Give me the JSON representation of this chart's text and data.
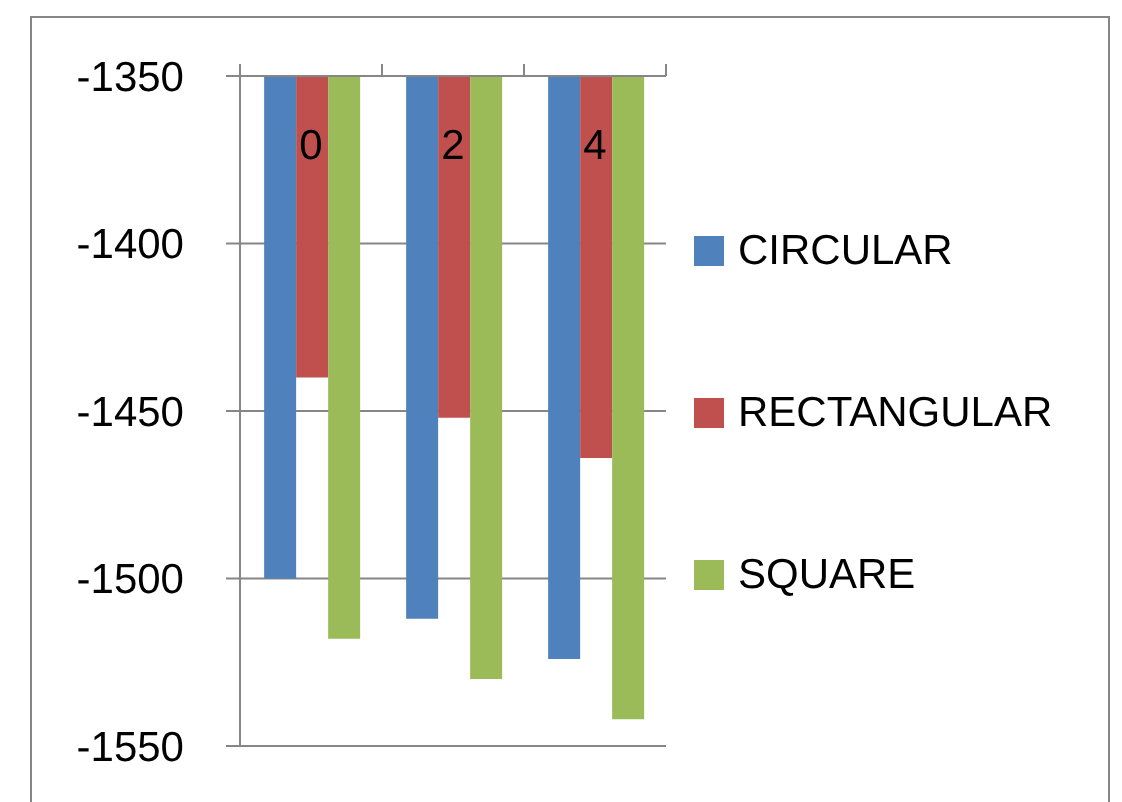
{
  "chart_data": {
    "type": "bar",
    "categories": [
      "0",
      "2",
      "4"
    ],
    "series": [
      {
        "name": "CIRCULAR",
        "color": "#4f81bd",
        "values": [
          -1500,
          -1512,
          -1524
        ]
      },
      {
        "name": "RECTANGULAR",
        "color": "#c0504d",
        "values": [
          -1440,
          -1452,
          -1464
        ]
      },
      {
        "name": "SQUARE",
        "color": "#9bbb59",
        "values": [
          -1518,
          -1530,
          -1542
        ]
      }
    ],
    "ylim": [
      -1550,
      -1350
    ],
    "yticks": [
      -1550,
      -1500,
      -1450,
      -1400,
      -1350
    ],
    "grid": "y",
    "legend": "right"
  }
}
